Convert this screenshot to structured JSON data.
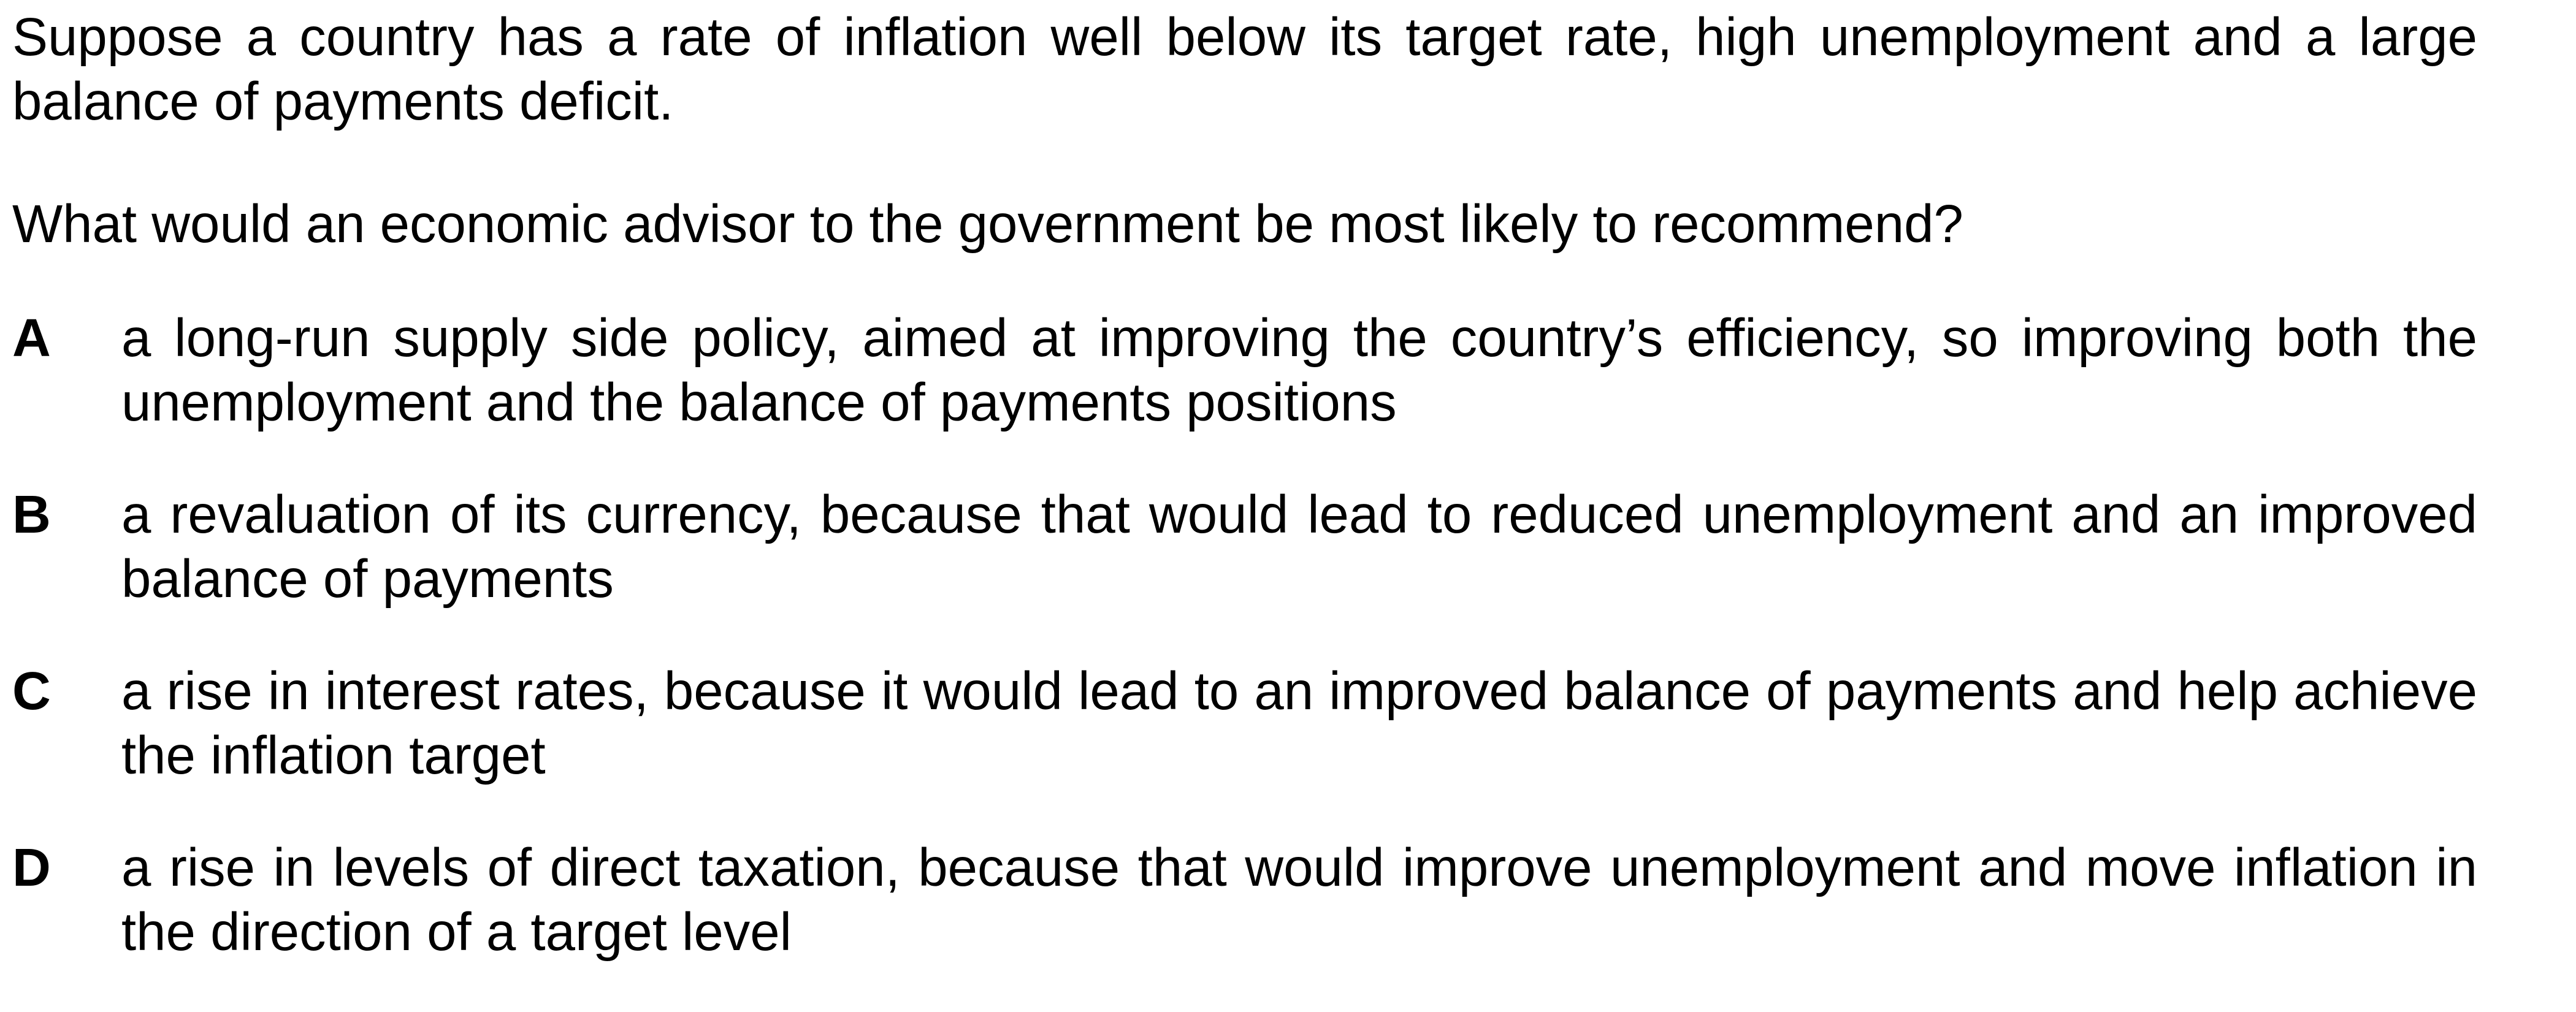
{
  "question": {
    "stem": "Suppose a country has a rate of inflation well below its target rate, high unemployment and a large balance of payments deficit.",
    "prompt": "What would an economic advisor to the government be most likely to recommend?"
  },
  "options": [
    {
      "letter": "A",
      "text": "a long-run supply side policy, aimed at improving the country’s efficiency, so improving both the unemployment and the balance of payments positions"
    },
    {
      "letter": "B",
      "text": "a revaluation of its currency, because that would lead to reduced unemployment and an improved balance of payments"
    },
    {
      "letter": "C",
      "text": "a rise in interest rates, because it would lead to an improved balance of payments and help achieve the inflation target"
    },
    {
      "letter": "D",
      "text": "a rise in levels of direct taxation, because that would improve unemployment and move inflation in the direction of a target level"
    }
  ]
}
